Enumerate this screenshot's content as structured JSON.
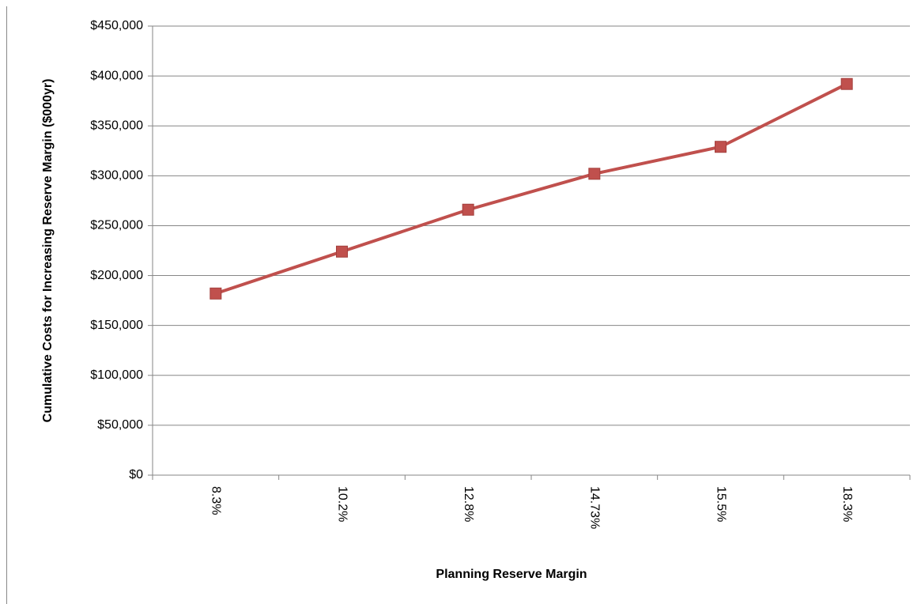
{
  "chart_data": {
    "type": "line",
    "x_label": "Planning Reserve Margin",
    "y_label": "Cumulative Costs for Increasing Reserve Margin  ($000yr)",
    "categories": [
      "8.3%",
      "10.2%",
      "12.8%",
      "14.73%",
      "15.5%",
      "18.3%"
    ],
    "values": [
      182000,
      224000,
      266000,
      302000,
      329000,
      392000
    ],
    "color": "#c0504d",
    "marker": "square",
    "ylim": [
      0,
      450000
    ],
    "yticks": [
      {
        "value": 0,
        "label": "$0"
      },
      {
        "value": 50000,
        "label": "$50,000"
      },
      {
        "value": 100000,
        "label": "$100,000"
      },
      {
        "value": 150000,
        "label": "$150,000"
      },
      {
        "value": 200000,
        "label": "$200,000"
      },
      {
        "value": 250000,
        "label": "$250,000"
      },
      {
        "value": 300000,
        "label": "$300,000"
      },
      {
        "value": 350000,
        "label": "$350,000"
      },
      {
        "value": 400000,
        "label": "$400,000"
      },
      {
        "value": 450000,
        "label": "$450,000"
      }
    ],
    "grid": true
  }
}
